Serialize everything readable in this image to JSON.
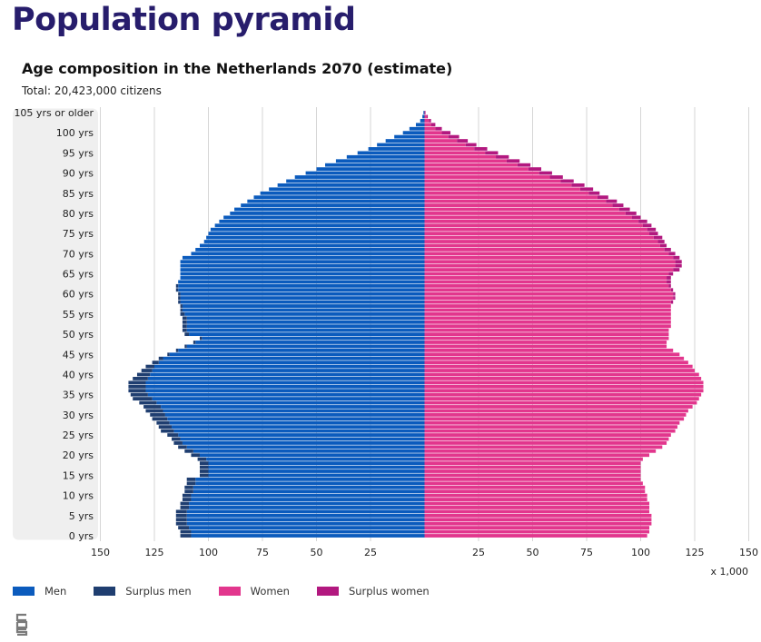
{
  "page": {
    "title": "Population pyramid"
  },
  "chart_data": {
    "type": "bar",
    "orientation": "horizontal-population-pyramid",
    "title": "Age composition in the Netherlands 2070 (estimate)",
    "subtitle": "Total: 20,423,000 citizens",
    "x_unit_label": "x 1,000",
    "x_ticks": [
      "150",
      "125",
      "100",
      "75",
      "50",
      "25",
      "25",
      "50",
      "75",
      "100",
      "125",
      "150"
    ],
    "xlim_per_side": [
      0,
      150
    ],
    "age_labels": [
      "0 yrs",
      "5 yrs",
      "10 yrs",
      "15 yrs",
      "20 yrs",
      "25 yrs",
      "30 yrs",
      "35 yrs",
      "40 yrs",
      "45 yrs",
      "50 yrs",
      "55 yrs",
      "60 yrs",
      "65 yrs",
      "70 yrs",
      "75 yrs",
      "80 yrs",
      "85 yrs",
      "90 yrs",
      "95 yrs",
      "100 yrs",
      "105 yrs or older"
    ],
    "ages": [
      0,
      1,
      2,
      3,
      4,
      5,
      6,
      7,
      8,
      9,
      10,
      11,
      12,
      13,
      14,
      15,
      16,
      17,
      18,
      19,
      20,
      21,
      22,
      23,
      24,
      25,
      26,
      27,
      28,
      29,
      30,
      31,
      32,
      33,
      34,
      35,
      36,
      37,
      38,
      39,
      40,
      41,
      42,
      43,
      44,
      45,
      46,
      47,
      48,
      49,
      50,
      51,
      52,
      53,
      54,
      55,
      56,
      57,
      58,
      59,
      60,
      61,
      62,
      63,
      64,
      65,
      66,
      67,
      68,
      69,
      70,
      71,
      72,
      73,
      74,
      75,
      76,
      77,
      78,
      79,
      80,
      81,
      82,
      83,
      84,
      85,
      86,
      87,
      88,
      89,
      90,
      91,
      92,
      93,
      94,
      95,
      96,
      97,
      98,
      99,
      100,
      101,
      102,
      103,
      104,
      105
    ],
    "series": [
      {
        "name": "Men",
        "values": [
          108,
          108,
          109,
          110,
          110,
          110,
          110,
          109,
          109,
          108,
          108,
          107,
          107,
          106,
          106,
          100,
          100,
          100,
          100,
          101,
          104,
          107,
          110,
          112,
          113,
          114,
          116,
          117,
          118,
          119,
          120,
          121,
          122,
          124,
          126,
          128,
          129,
          129,
          129,
          128,
          127,
          126,
          125,
          123,
          121,
          118,
          114,
          110,
          106,
          103,
          109,
          110,
          110,
          110,
          110,
          111,
          112,
          112,
          113,
          113,
          113,
          114,
          114,
          114,
          113,
          113,
          113,
          113,
          113,
          112,
          108,
          106,
          104,
          102,
          101,
          100,
          99,
          97,
          95,
          93,
          90,
          88,
          85,
          82,
          79,
          76,
          72,
          68,
          64,
          60,
          55,
          50,
          46,
          41,
          36,
          31,
          26,
          22,
          18,
          14,
          10,
          7,
          4,
          2,
          1,
          0.5
        ]
      },
      {
        "name": "Surplus men",
        "values": [
          5,
          5,
          5,
          5,
          5,
          5,
          5,
          4,
          4,
          4,
          4,
          4,
          4,
          4,
          4,
          4,
          4,
          4,
          4,
          4,
          4,
          4,
          4,
          4,
          4,
          5,
          6,
          6,
          6,
          7,
          7,
          8,
          8,
          8,
          9,
          8,
          8,
          8,
          8,
          7,
          6,
          5,
          4,
          3,
          2,
          1,
          1,
          1,
          1,
          1,
          2,
          2,
          2,
          2,
          2,
          2,
          1,
          1,
          1,
          1,
          1,
          1,
          1,
          0,
          0,
          0,
          0,
          0,
          0,
          0,
          0,
          0,
          0,
          0,
          0,
          0,
          0,
          0,
          0,
          0,
          0,
          0,
          0,
          0,
          0,
          0,
          0,
          0,
          0,
          0,
          0,
          0,
          0,
          0,
          0,
          0,
          0,
          0,
          0,
          0,
          0,
          0,
          0,
          0,
          0,
          0
        ]
      },
      {
        "name": "Women",
        "values": [
          103,
          104,
          104,
          105,
          105,
          105,
          104,
          104,
          104,
          103,
          103,
          102,
          102,
          101,
          100,
          100,
          100,
          100,
          100,
          101,
          104,
          107,
          110,
          112,
          113,
          114,
          116,
          117,
          118,
          120,
          121,
          122,
          124,
          126,
          127,
          128,
          129,
          129,
          129,
          128,
          127,
          125,
          124,
          122,
          120,
          118,
          115,
          112,
          112,
          113,
          113,
          113,
          114,
          114,
          114,
          114,
          114,
          114,
          114,
          115,
          115,
          114,
          113,
          112,
          112,
          113,
          115,
          116,
          116,
          115,
          113,
          111,
          109,
          108,
          106,
          104,
          103,
          101,
          99,
          96,
          93,
          90,
          87,
          84,
          80,
          76,
          72,
          68,
          63,
          58,
          53,
          48,
          43,
          38,
          33,
          28,
          23,
          19,
          15,
          11,
          8,
          5,
          3,
          2,
          1,
          0.3
        ]
      },
      {
        "name": "Surplus women",
        "values": [
          0,
          0,
          0,
          0,
          0,
          0,
          0,
          0,
          0,
          0,
          0,
          0,
          0,
          0,
          0,
          0,
          0,
          0,
          0,
          0,
          0,
          0,
          0,
          0,
          0,
          0,
          0,
          0,
          0,
          0,
          0,
          0,
          0,
          0,
          0,
          0,
          0,
          0,
          0,
          0,
          0,
          0,
          0,
          0,
          0,
          0,
          0,
          0,
          0,
          0,
          0,
          0,
          0,
          0,
          0,
          0,
          0,
          0,
          1,
          1,
          1,
          1,
          1,
          2,
          2,
          2,
          3,
          3,
          3,
          3,
          3,
          3,
          3,
          3,
          4,
          4,
          4,
          4,
          4,
          4,
          5,
          5,
          5,
          5,
          5,
          5,
          6,
          6,
          6,
          6,
          6,
          6,
          6,
          6,
          6,
          6,
          6,
          5,
          5,
          5,
          4,
          3,
          2,
          1,
          0.5,
          0.2
        ]
      }
    ],
    "legend_position": "bottom",
    "grid": true,
    "colors": {
      "men": "#0b5bbd",
      "surplus_men": "#1f3e70",
      "women": "#e2368d",
      "surplus_women": "#b2187f",
      "grid": "#d6d6d6",
      "age_band": "#efefef"
    }
  },
  "legend": {
    "items": [
      {
        "label": "Men",
        "color": "#0b5bbd"
      },
      {
        "label": "Surplus men",
        "color": "#1f3e70"
      },
      {
        "label": "Women",
        "color": "#e2368d"
      },
      {
        "label": "Surplus women",
        "color": "#b2187f"
      }
    ]
  },
  "logo": {
    "icon": "cbs-logo-icon"
  }
}
